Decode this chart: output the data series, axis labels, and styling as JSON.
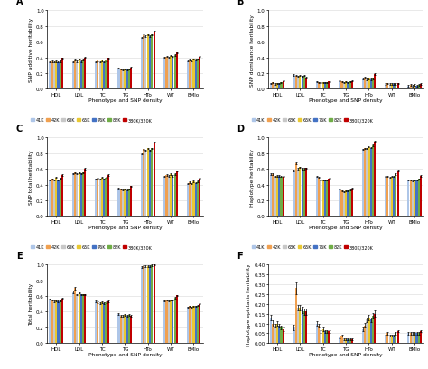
{
  "phenotypes": [
    "HDL",
    "LDL",
    "TC",
    "TG",
    "HTo",
    "WT",
    "BMIo"
  ],
  "series_labels": [
    "41K",
    "42K",
    "63K",
    "65K",
    "76K",
    "82K",
    "380K/320K"
  ],
  "series_colors": [
    "#aec6e8",
    "#f0a050",
    "#c8c8c8",
    "#e8c832",
    "#4472c4",
    "#70ad47",
    "#c00000"
  ],
  "panels": {
    "A": {
      "title": "A",
      "ylabel": "SNP additive heritability",
      "ylim": [
        0,
        1
      ],
      "yticks": [
        0,
        0.2,
        0.4,
        0.6,
        0.8,
        1
      ],
      "data": [
        [
          0.34,
          0.35,
          0.34,
          0.35,
          0.34,
          0.35,
          0.39
        ],
        [
          0.34,
          0.37,
          0.35,
          0.38,
          0.35,
          0.37,
          0.4
        ],
        [
          0.34,
          0.36,
          0.34,
          0.36,
          0.34,
          0.36,
          0.39
        ],
        [
          0.26,
          0.25,
          0.24,
          0.25,
          0.24,
          0.25,
          0.27
        ],
        [
          0.65,
          0.68,
          0.67,
          0.69,
          0.67,
          0.69,
          0.73
        ],
        [
          0.4,
          0.41,
          0.4,
          0.42,
          0.41,
          0.43,
          0.46
        ],
        [
          0.36,
          0.37,
          0.36,
          0.38,
          0.37,
          0.38,
          0.41
        ]
      ],
      "errors": [
        [
          0.008,
          0.008,
          0.008,
          0.008,
          0.008,
          0.008,
          0.008
        ],
        [
          0.008,
          0.008,
          0.008,
          0.008,
          0.008,
          0.008,
          0.008
        ],
        [
          0.008,
          0.008,
          0.008,
          0.008,
          0.008,
          0.008,
          0.008
        ],
        [
          0.008,
          0.008,
          0.008,
          0.008,
          0.008,
          0.008,
          0.008
        ],
        [
          0.008,
          0.008,
          0.008,
          0.008,
          0.008,
          0.008,
          0.008
        ],
        [
          0.008,
          0.008,
          0.008,
          0.008,
          0.008,
          0.008,
          0.008
        ],
        [
          0.008,
          0.008,
          0.008,
          0.008,
          0.008,
          0.008,
          0.008
        ]
      ]
    },
    "B": {
      "title": "B",
      "ylabel": "SNP dominance heritability",
      "ylim": [
        0,
        1
      ],
      "yticks": [
        0,
        0.2,
        0.4,
        0.6,
        0.8,
        1
      ],
      "data": [
        [
          0.07,
          0.08,
          0.06,
          0.07,
          0.07,
          0.08,
          0.1
        ],
        [
          0.18,
          0.17,
          0.16,
          0.17,
          0.16,
          0.17,
          0.14
        ],
        [
          0.09,
          0.08,
          0.08,
          0.08,
          0.08,
          0.08,
          0.09
        ],
        [
          0.1,
          0.09,
          0.08,
          0.09,
          0.08,
          0.09,
          0.1
        ],
        [
          0.13,
          0.14,
          0.12,
          0.13,
          0.12,
          0.13,
          0.19
        ],
        [
          0.06,
          0.07,
          0.06,
          0.06,
          0.06,
          0.06,
          0.07
        ],
        [
          0.04,
          0.05,
          0.04,
          0.05,
          0.04,
          0.05,
          0.06
        ]
      ],
      "errors": [
        [
          0.008,
          0.008,
          0.008,
          0.008,
          0.008,
          0.008,
          0.008
        ],
        [
          0.01,
          0.01,
          0.01,
          0.01,
          0.01,
          0.01,
          0.01
        ],
        [
          0.008,
          0.008,
          0.008,
          0.008,
          0.008,
          0.008,
          0.008
        ],
        [
          0.008,
          0.008,
          0.008,
          0.008,
          0.008,
          0.008,
          0.008
        ],
        [
          0.01,
          0.01,
          0.01,
          0.01,
          0.01,
          0.01,
          0.01
        ],
        [
          0.008,
          0.008,
          0.008,
          0.008,
          0.008,
          0.008,
          0.008
        ],
        [
          0.008,
          0.008,
          0.008,
          0.008,
          0.008,
          0.008,
          0.008
        ]
      ]
    },
    "C": {
      "title": "C",
      "ylabel": "SNP total heritability",
      "ylim": [
        0,
        1
      ],
      "yticks": [
        0,
        0.2,
        0.4,
        0.6,
        0.8,
        1
      ],
      "data": [
        [
          0.46,
          0.47,
          0.46,
          0.49,
          0.46,
          0.48,
          0.52
        ],
        [
          0.54,
          0.55,
          0.54,
          0.55,
          0.54,
          0.55,
          0.6
        ],
        [
          0.47,
          0.48,
          0.47,
          0.49,
          0.47,
          0.49,
          0.52
        ],
        [
          0.35,
          0.34,
          0.33,
          0.34,
          0.33,
          0.34,
          0.38
        ],
        [
          0.79,
          0.85,
          0.84,
          0.86,
          0.84,
          0.86,
          0.94
        ],
        [
          0.5,
          0.52,
          0.51,
          0.53,
          0.51,
          0.53,
          0.57
        ],
        [
          0.41,
          0.43,
          0.41,
          0.44,
          0.42,
          0.44,
          0.48
        ]
      ],
      "errors": [
        [
          0.008,
          0.008,
          0.008,
          0.008,
          0.008,
          0.008,
          0.008
        ],
        [
          0.008,
          0.008,
          0.008,
          0.008,
          0.008,
          0.008,
          0.008
        ],
        [
          0.008,
          0.008,
          0.008,
          0.008,
          0.008,
          0.008,
          0.008
        ],
        [
          0.008,
          0.008,
          0.008,
          0.008,
          0.008,
          0.008,
          0.008
        ],
        [
          0.008,
          0.008,
          0.008,
          0.008,
          0.008,
          0.008,
          0.008
        ],
        [
          0.008,
          0.008,
          0.008,
          0.008,
          0.008,
          0.008,
          0.008
        ],
        [
          0.008,
          0.008,
          0.008,
          0.008,
          0.008,
          0.008,
          0.008
        ]
      ]
    },
    "D": {
      "title": "D",
      "ylabel": "Haplotype heritability",
      "ylim": [
        0,
        1
      ],
      "yticks": [
        0,
        0.2,
        0.4,
        0.6,
        0.8,
        1
      ],
      "data": [
        [
          0.53,
          0.53,
          0.5,
          0.51,
          0.51,
          0.5,
          0.5
        ],
        [
          0.58,
          0.67,
          0.6,
          0.62,
          0.6,
          0.6,
          0.61
        ],
        [
          0.5,
          0.49,
          0.46,
          0.46,
          0.46,
          0.46,
          0.48
        ],
        [
          0.34,
          0.32,
          0.31,
          0.32,
          0.32,
          0.33,
          0.35
        ],
        [
          0.85,
          0.86,
          0.86,
          0.88,
          0.87,
          0.9,
          0.95
        ],
        [
          0.5,
          0.5,
          0.49,
          0.5,
          0.5,
          0.53,
          0.58
        ],
        [
          0.46,
          0.46,
          0.45,
          0.46,
          0.46,
          0.47,
          0.51
        ]
      ],
      "errors": [
        [
          0.008,
          0.008,
          0.008,
          0.008,
          0.008,
          0.008,
          0.008
        ],
        [
          0.015,
          0.015,
          0.008,
          0.008,
          0.008,
          0.008,
          0.008
        ],
        [
          0.008,
          0.008,
          0.008,
          0.008,
          0.008,
          0.008,
          0.008
        ],
        [
          0.008,
          0.008,
          0.008,
          0.008,
          0.008,
          0.008,
          0.008
        ],
        [
          0.008,
          0.008,
          0.008,
          0.008,
          0.008,
          0.008,
          0.008
        ],
        [
          0.008,
          0.008,
          0.008,
          0.008,
          0.008,
          0.008,
          0.008
        ],
        [
          0.008,
          0.008,
          0.008,
          0.008,
          0.008,
          0.008,
          0.008
        ]
      ]
    },
    "E": {
      "title": "E",
      "ylabel": "Total heritability",
      "ylim": [
        0,
        1
      ],
      "yticks": [
        0,
        0.2,
        0.4,
        0.6,
        0.8,
        1
      ],
      "data": [
        [
          0.56,
          0.55,
          0.53,
          0.54,
          0.53,
          0.54,
          0.57
        ],
        [
          0.65,
          0.7,
          0.62,
          0.64,
          0.62,
          0.62,
          0.62
        ],
        [
          0.53,
          0.52,
          0.51,
          0.52,
          0.51,
          0.52,
          0.53
        ],
        [
          0.37,
          0.35,
          0.35,
          0.36,
          0.35,
          0.36,
          0.35
        ],
        [
          0.97,
          0.98,
          0.98,
          0.98,
          0.98,
          0.99,
          1.0
        ],
        [
          0.54,
          0.55,
          0.54,
          0.55,
          0.55,
          0.58,
          0.61
        ],
        [
          0.46,
          0.47,
          0.46,
          0.47,
          0.47,
          0.48,
          0.5
        ]
      ],
      "errors": [
        [
          0.008,
          0.008,
          0.008,
          0.008,
          0.008,
          0.008,
          0.008
        ],
        [
          0.015,
          0.015,
          0.008,
          0.008,
          0.008,
          0.008,
          0.008
        ],
        [
          0.008,
          0.008,
          0.008,
          0.008,
          0.008,
          0.008,
          0.008
        ],
        [
          0.01,
          0.01,
          0.008,
          0.008,
          0.008,
          0.008,
          0.008
        ],
        [
          0.008,
          0.008,
          0.008,
          0.008,
          0.008,
          0.008,
          0.008
        ],
        [
          0.008,
          0.008,
          0.008,
          0.008,
          0.008,
          0.008,
          0.008
        ],
        [
          0.008,
          0.008,
          0.008,
          0.008,
          0.008,
          0.008,
          0.008
        ]
      ]
    },
    "F": {
      "title": "F",
      "ylabel": "Haplotype epistasis heritability",
      "ylim": [
        0,
        0.4
      ],
      "yticks": [
        0,
        0.05,
        0.1,
        0.15,
        0.2,
        0.25,
        0.3,
        0.35,
        0.4
      ],
      "data": [
        [
          0.13,
          0.1,
          0.09,
          0.1,
          0.09,
          0.08,
          0.07
        ],
        [
          0.08,
          0.28,
          0.18,
          0.18,
          0.17,
          0.16,
          0.16
        ],
        [
          0.1,
          0.09,
          0.06,
          0.07,
          0.06,
          0.06,
          0.06
        ],
        [
          0.03,
          0.04,
          0.02,
          0.02,
          0.02,
          0.02,
          0.02
        ],
        [
          0.07,
          0.09,
          0.12,
          0.13,
          0.12,
          0.14,
          0.15
        ],
        [
          0.04,
          0.05,
          0.04,
          0.04,
          0.04,
          0.05,
          0.06
        ],
        [
          0.05,
          0.05,
          0.05,
          0.05,
          0.05,
          0.05,
          0.06
        ]
      ],
      "errors": [
        [
          0.015,
          0.015,
          0.01,
          0.01,
          0.01,
          0.01,
          0.01
        ],
        [
          0.015,
          0.03,
          0.015,
          0.015,
          0.015,
          0.015,
          0.015
        ],
        [
          0.01,
          0.01,
          0.008,
          0.008,
          0.008,
          0.008,
          0.008
        ],
        [
          0.005,
          0.005,
          0.005,
          0.005,
          0.005,
          0.005,
          0.005
        ],
        [
          0.01,
          0.012,
          0.012,
          0.012,
          0.012,
          0.015,
          0.015
        ],
        [
          0.005,
          0.005,
          0.005,
          0.005,
          0.005,
          0.005,
          0.005
        ],
        [
          0.005,
          0.005,
          0.005,
          0.005,
          0.005,
          0.005,
          0.005
        ]
      ]
    }
  },
  "xlabel": "Phenotype and SNP density",
  "background_color": "#ffffff",
  "grid_color": "#d8d8d8"
}
